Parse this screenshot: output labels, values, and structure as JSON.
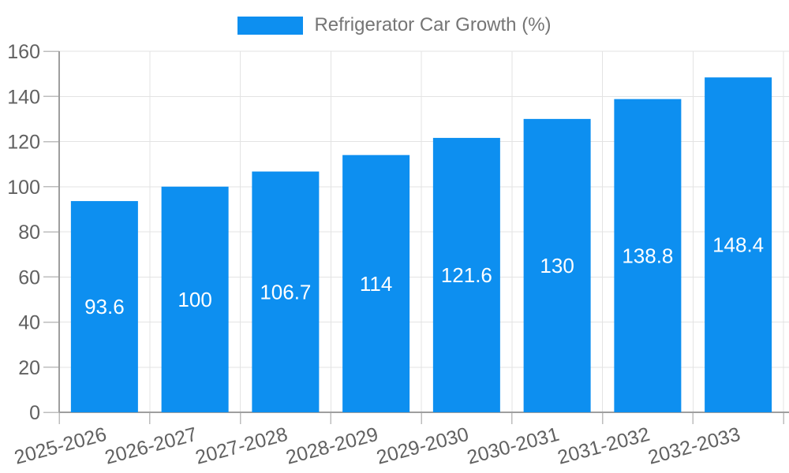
{
  "chart": {
    "legend": {
      "label": "Refrigerator Car Growth (%)"
    }
  },
  "chart_data": {
    "type": "bar",
    "title": "Refrigerator Car Growth (%)",
    "categories": [
      "2025-2026",
      "2026-2027",
      "2027-2028",
      "2028-2029",
      "2029-2030",
      "2030-2031",
      "2031-2032",
      "2032-2033"
    ],
    "series": [
      {
        "name": "Refrigerator Car Growth (%)",
        "values": [
          93.6,
          100,
          106.7,
          114,
          121.6,
          130,
          138.8,
          148.4
        ]
      }
    ],
    "data_labels": [
      "93.6",
      "100",
      "106.7",
      "114",
      "121.6",
      "130",
      "138.8",
      "148.4"
    ],
    "xlabel": "",
    "ylabel": "",
    "ylim": [
      0,
      160
    ],
    "yticks": [
      0,
      20,
      40,
      60,
      80,
      100,
      120,
      140,
      160
    ],
    "grid": true,
    "legend_position": "top-center",
    "x_label_rotation_deg": -15
  },
  "colors": {
    "bar": "#0d8ff0",
    "axis_line": "#9e9e9e",
    "grid_line": "#e3e3e3",
    "tick_line": "#bdbdbd",
    "tick_text": "#616161",
    "legend_text": "#757575",
    "value_label": "#ffffff",
    "background": "#ffffff"
  }
}
